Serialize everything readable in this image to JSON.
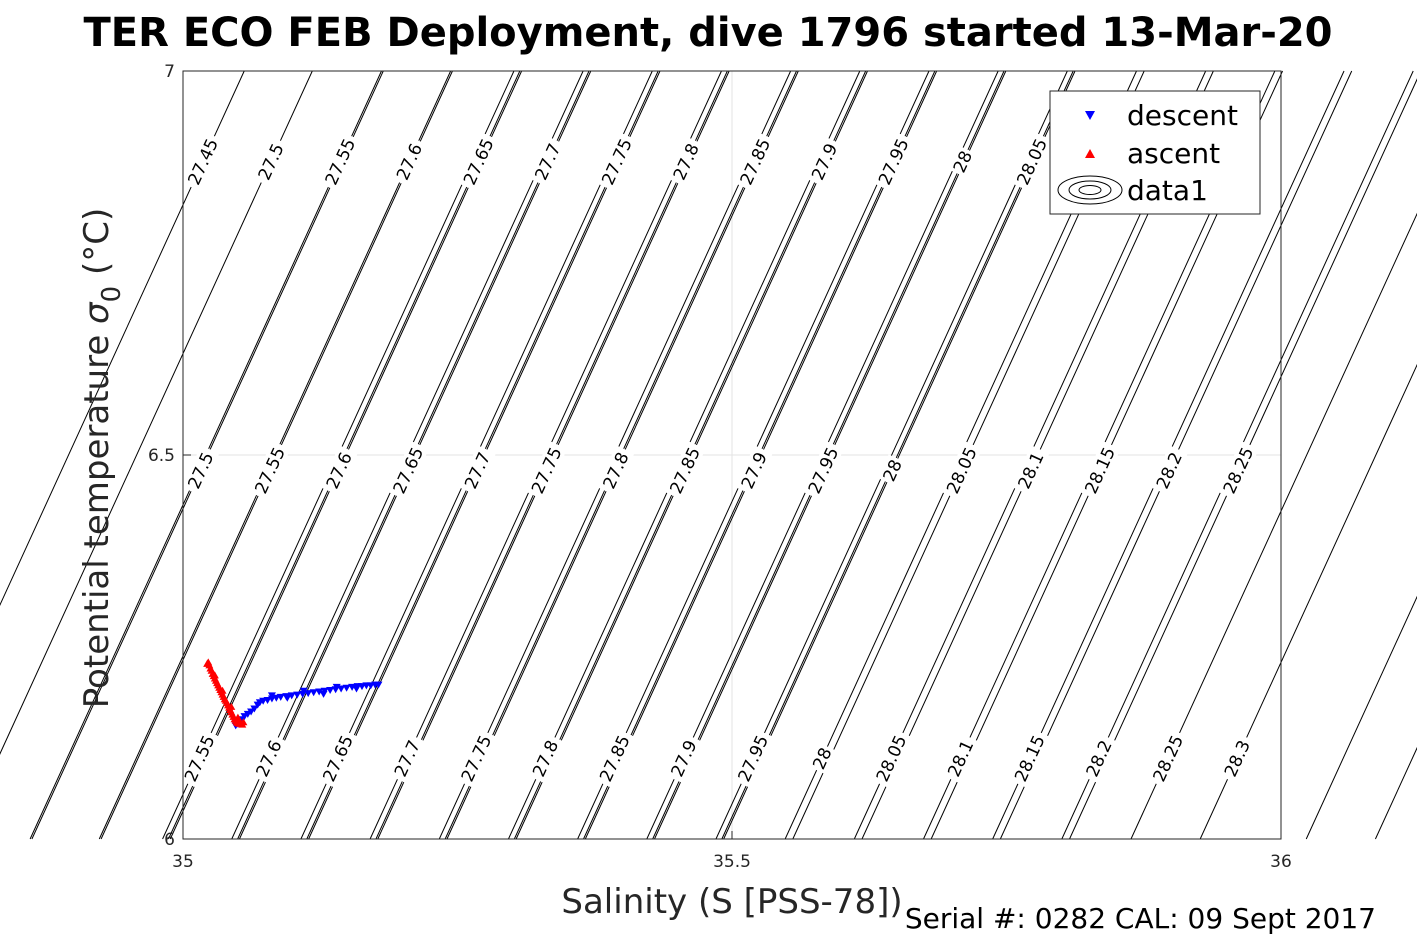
{
  "title": "TER ECO FEB Deployment, dive 1796 started 13-Mar-20",
  "footer": "Serial #: 0282  CAL: 09 Sept 2017",
  "chart_data": {
    "type": "scatter",
    "title": "TER ECO FEB Deployment, dive 1796 started 13-Mar-20",
    "xlabel": "Salinity (S [PSS-78])",
    "ylabel_main": "Potential temperature ",
    "ylabel_sigma": "σ",
    "ylabel_sub": "0",
    "ylabel_unit": " (°C)",
    "xlim": [
      35,
      36
    ],
    "ylim": [
      6,
      7
    ],
    "xticks": [
      35,
      35.5,
      36
    ],
    "xtick_labels": [
      "35",
      "35.5",
      "36"
    ],
    "yticks": [
      6,
      6.5,
      7
    ],
    "ytick_labels": [
      "6",
      "6.5",
      "7"
    ],
    "grid": true,
    "legend_position": "top-right",
    "legend": [
      {
        "label": "descent",
        "marker": "triangle-down",
        "color": "#0000ff"
      },
      {
        "label": "ascent",
        "marker": "triangle-up",
        "color": "#ff0000"
      },
      {
        "label": "data1",
        "marker": "contour"
      }
    ],
    "series": [
      {
        "name": "descent",
        "color": "#0000ff",
        "marker": "triangle-down",
        "points": [
          [
            35.048,
            6.148
          ],
          [
            35.05,
            6.15
          ],
          [
            35.052,
            6.153
          ],
          [
            35.054,
            6.156
          ],
          [
            35.056,
            6.16
          ],
          [
            35.059,
            6.163
          ],
          [
            35.062,
            6.166
          ],
          [
            35.065,
            6.17
          ],
          [
            35.068,
            6.175
          ],
          [
            35.07,
            6.178
          ],
          [
            35.073,
            6.18
          ],
          [
            35.077,
            6.181
          ],
          [
            35.081,
            6.183
          ],
          [
            35.085,
            6.184
          ],
          [
            35.089,
            6.185
          ],
          [
            35.094,
            6.186
          ],
          [
            35.099,
            6.187
          ],
          [
            35.104,
            6.188
          ],
          [
            35.109,
            6.189
          ],
          [
            35.114,
            6.19
          ],
          [
            35.119,
            6.191
          ],
          [
            35.124,
            6.192
          ],
          [
            35.129,
            6.193
          ],
          [
            35.134,
            6.194
          ],
          [
            35.139,
            6.195
          ],
          [
            35.144,
            6.196
          ],
          [
            35.149,
            6.197
          ],
          [
            35.154,
            6.198
          ],
          [
            35.159,
            6.199
          ],
          [
            35.163,
            6.199
          ],
          [
            35.167,
            6.2
          ],
          [
            35.171,
            6.2
          ],
          [
            35.175,
            6.201
          ],
          [
            35.178,
            6.201
          ],
          [
            35.081,
            6.187
          ],
          [
            35.095,
            6.184
          ],
          [
            35.11,
            6.193
          ],
          [
            35.128,
            6.189
          ],
          [
            35.14,
            6.198
          ],
          [
            35.158,
            6.196
          ]
        ]
      },
      {
        "name": "ascent",
        "color": "#ff0000",
        "marker": "triangle-up",
        "points": [
          [
            35.023,
            6.23
          ],
          [
            35.024,
            6.226
          ],
          [
            35.025,
            6.222
          ],
          [
            35.026,
            6.219
          ],
          [
            35.027,
            6.215
          ],
          [
            35.028,
            6.212
          ],
          [
            35.029,
            6.209
          ],
          [
            35.03,
            6.206
          ],
          [
            35.031,
            6.203
          ],
          [
            35.032,
            6.2
          ],
          [
            35.033,
            6.197
          ],
          [
            35.034,
            6.194
          ],
          [
            35.035,
            6.191
          ],
          [
            35.036,
            6.188
          ],
          [
            35.037,
            6.185
          ],
          [
            35.038,
            6.182
          ],
          [
            35.039,
            6.18
          ],
          [
            35.04,
            6.177
          ],
          [
            35.041,
            6.174
          ],
          [
            35.042,
            6.171
          ],
          [
            35.043,
            6.168
          ],
          [
            35.044,
            6.165
          ],
          [
            35.045,
            6.162
          ],
          [
            35.046,
            6.159
          ],
          [
            35.047,
            6.156
          ],
          [
            35.048,
            6.154
          ],
          [
            35.049,
            6.152
          ],
          [
            35.05,
            6.151
          ],
          [
            35.051,
            6.15
          ],
          [
            35.052,
            6.151
          ],
          [
            35.053,
            6.15
          ],
          [
            35.054,
            6.149
          ],
          [
            35.022,
            6.228
          ],
          [
            35.029,
            6.213
          ],
          [
            35.036,
            6.193
          ],
          [
            35.044,
            6.172
          ],
          [
            35.05,
            6.158
          ],
          [
            35.055,
            6.152
          ]
        ]
      }
    ],
    "isopycnals": {
      "row_top": [
        {
          "label": "27.45",
          "salinity": 35.018,
          "temperature": 6.882
        },
        {
          "label": "27.5",
          "salinity": 35.08,
          "temperature": 6.882
        },
        {
          "label": "27.55",
          "salinity": 35.143,
          "temperature": 6.882
        },
        {
          "label": "27.6",
          "salinity": 35.206,
          "temperature": 6.882
        },
        {
          "label": "27.65",
          "salinity": 35.269,
          "temperature": 6.882
        },
        {
          "label": "27.7",
          "salinity": 35.332,
          "temperature": 6.882
        },
        {
          "label": "27.75",
          "salinity": 35.395,
          "temperature": 6.882
        },
        {
          "label": "27.8",
          "salinity": 35.458,
          "temperature": 6.882
        },
        {
          "label": "27.85",
          "salinity": 35.521,
          "temperature": 6.882
        },
        {
          "label": "27.9",
          "salinity": 35.584,
          "temperature": 6.882
        },
        {
          "label": "27.95",
          "salinity": 35.647,
          "temperature": 6.882
        },
        {
          "label": "28",
          "salinity": 35.71,
          "temperature": 6.882
        },
        {
          "label": "28.05",
          "salinity": 35.773,
          "temperature": 6.882
        }
      ],
      "row_mid": [
        {
          "label": "27.5",
          "salinity": 35.016,
          "temperature": 6.48
        },
        {
          "label": "27.55",
          "salinity": 35.079,
          "temperature": 6.48
        },
        {
          "label": "27.6",
          "salinity": 35.142,
          "temperature": 6.48
        },
        {
          "label": "27.65",
          "salinity": 35.205,
          "temperature": 6.48
        },
        {
          "label": "27.7",
          "salinity": 35.268,
          "temperature": 6.48
        },
        {
          "label": "27.75",
          "salinity": 35.331,
          "temperature": 6.48
        },
        {
          "label": "27.8",
          "salinity": 35.394,
          "temperature": 6.48
        },
        {
          "label": "27.85",
          "salinity": 35.457,
          "temperature": 6.48
        },
        {
          "label": "27.9",
          "salinity": 35.52,
          "temperature": 6.48
        },
        {
          "label": "27.95",
          "salinity": 35.583,
          "temperature": 6.48
        },
        {
          "label": "28",
          "salinity": 35.646,
          "temperature": 6.48
        },
        {
          "label": "28.05",
          "salinity": 35.709,
          "temperature": 6.48
        },
        {
          "label": "28.1",
          "salinity": 35.772,
          "temperature": 6.48
        },
        {
          "label": "28.15",
          "salinity": 35.835,
          "temperature": 6.48
        },
        {
          "label": "28.2",
          "salinity": 35.898,
          "temperature": 6.48
        },
        {
          "label": "28.25",
          "salinity": 35.961,
          "temperature": 6.48
        }
      ],
      "row_bot": [
        {
          "label": "27.55",
          "salinity": 35.015,
          "temperature": 6.105
        },
        {
          "label": "27.6",
          "salinity": 35.078,
          "temperature": 6.105
        },
        {
          "label": "27.65",
          "salinity": 35.141,
          "temperature": 6.105
        },
        {
          "label": "27.7",
          "salinity": 35.204,
          "temperature": 6.105
        },
        {
          "label": "27.75",
          "salinity": 35.267,
          "temperature": 6.105
        },
        {
          "label": "27.8",
          "salinity": 35.33,
          "temperature": 6.105
        },
        {
          "label": "27.85",
          "salinity": 35.393,
          "temperature": 6.105
        },
        {
          "label": "27.9",
          "salinity": 35.456,
          "temperature": 6.105
        },
        {
          "label": "27.95",
          "salinity": 35.519,
          "temperature": 6.105
        },
        {
          "label": "28",
          "salinity": 35.582,
          "temperature": 6.105
        },
        {
          "label": "28.05",
          "salinity": 35.645,
          "temperature": 6.105
        },
        {
          "label": "28.1",
          "salinity": 35.708,
          "temperature": 6.105
        },
        {
          "label": "28.15",
          "salinity": 35.771,
          "temperature": 6.105
        },
        {
          "label": "28.2",
          "salinity": 35.834,
          "temperature": 6.105
        },
        {
          "label": "28.25",
          "salinity": 35.897,
          "temperature": 6.105
        },
        {
          "label": "28.3",
          "salinity": 35.96,
          "temperature": 6.105
        }
      ]
    }
  }
}
